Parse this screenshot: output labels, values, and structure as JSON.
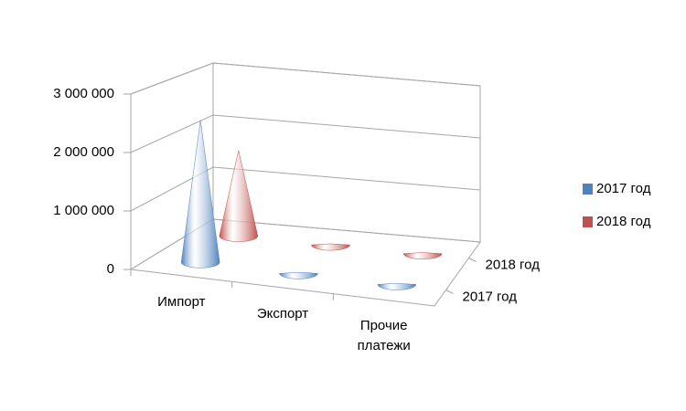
{
  "chart_data": {
    "type": "cone3d",
    "categories": [
      "Импорт",
      "Экспорт",
      "Прочие платежи"
    ],
    "series": [
      {
        "name": "2017 год",
        "color": "#4f81bd",
        "values": [
          2500000,
          20000,
          20000
        ]
      },
      {
        "name": "2018 год",
        "color": "#c0504d",
        "values": [
          1600000,
          20000,
          20000
        ]
      }
    ],
    "ylim": [
      0,
      3000000
    ],
    "yticks": [
      0,
      {
        "value": 1000000,
        "label": "1 000 000"
      },
      {
        "value": 2000000,
        "label": "2 000 000"
      },
      {
        "value": 3000000,
        "label": "3 000 000"
      }
    ],
    "grid": true,
    "legend": "right"
  }
}
